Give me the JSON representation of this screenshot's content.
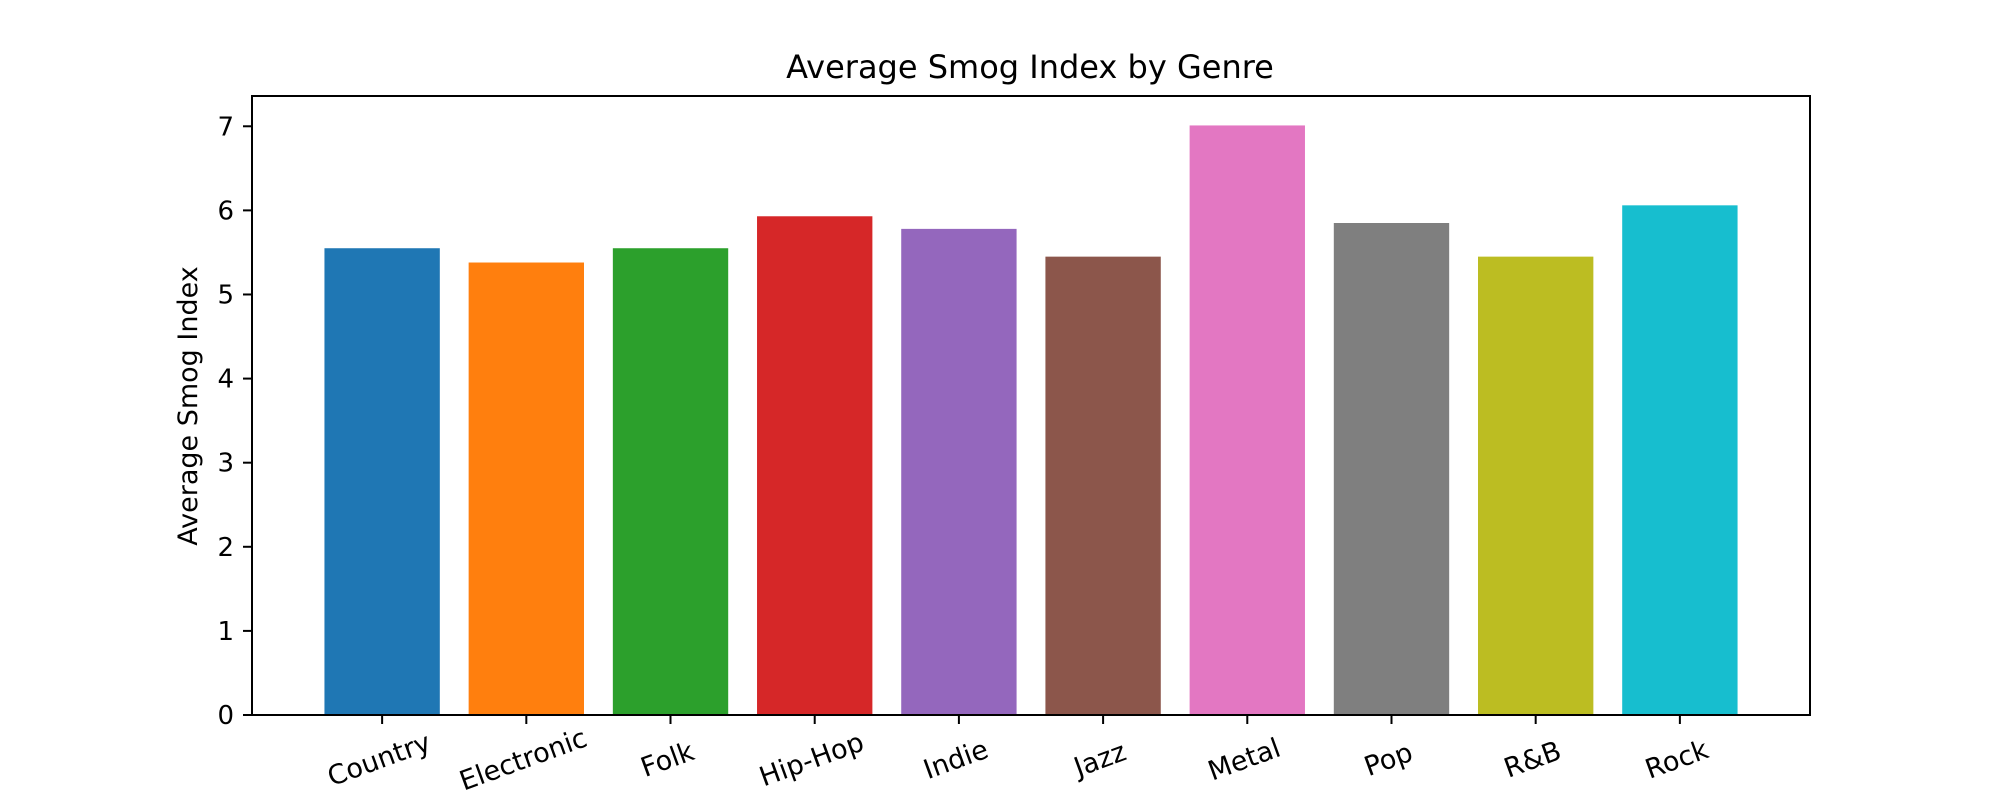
{
  "chart_data": {
    "type": "bar",
    "title": "Average Smog Index by Genre",
    "xlabel": "",
    "ylabel": "Average Smog Index",
    "categories": [
      "Country",
      "Electronic",
      "Folk",
      "Hip-Hop",
      "Indie",
      "Jazz",
      "Metal",
      "Pop",
      "R&B",
      "Rock"
    ],
    "values": [
      5.55,
      5.38,
      5.55,
      5.93,
      5.78,
      5.45,
      7.01,
      5.85,
      5.45,
      6.06
    ],
    "colors": [
      "#1f77b4",
      "#ff7f0e",
      "#2ca02c",
      "#d62728",
      "#9467bd",
      "#8c564b",
      "#e377c2",
      "#7f7f7f",
      "#bcbd22",
      "#17becf"
    ],
    "ylim": [
      0,
      7.36
    ],
    "yticks": [
      0,
      1,
      2,
      3,
      4,
      5,
      6,
      7
    ],
    "grid": false,
    "x_tick_rotation_deg": 20
  }
}
